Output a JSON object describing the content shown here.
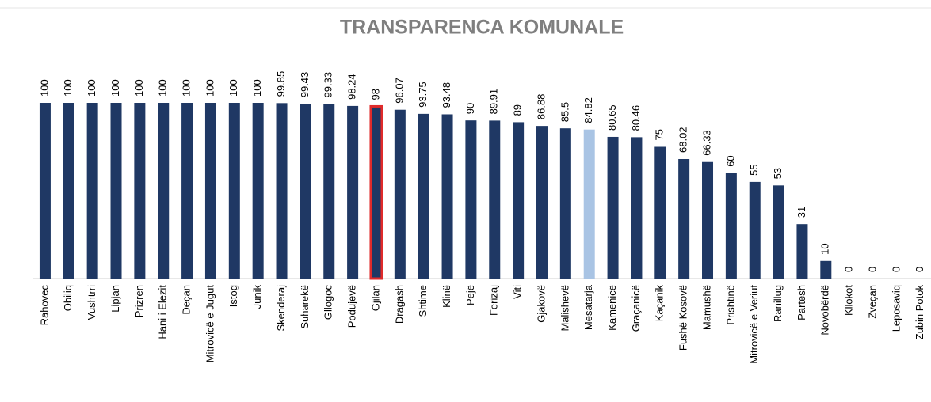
{
  "chart_data": {
    "type": "bar",
    "title": "TRANSPARENCA KOMUNALE",
    "categories": [
      "Rahovec",
      "Obiliq",
      "Vushtrri",
      "Lipjan",
      "Prizren",
      "Hani i Elezit",
      "Deçan",
      "Mitrovicë e Jugut",
      "Istog",
      "Junik",
      "Skenderaj",
      "Suharekë",
      "Gllogoc",
      "Podujevë",
      "Gjilan",
      "Dragash",
      "Shtime",
      "Klinë",
      "Pejë",
      "Ferizaj",
      "Viti",
      "Gjakovë",
      "Malishevë",
      "Mesatarja",
      "Kamenicë",
      "Graçanicë",
      "Kaçanik",
      "Fushë Kosovë",
      "Mamushë",
      "Prishtinë",
      "Mitrovicë e Veriut",
      "Ranillug",
      "Partesh",
      "Novobërdë",
      "Kllokot",
      "Zveçan",
      "Leposaviq",
      "Zubin Potok"
    ],
    "values": [
      100,
      100,
      100,
      100,
      100,
      100,
      100,
      100,
      100,
      100,
      99.85,
      99.43,
      99.33,
      98.24,
      98,
      96.07,
      93.75,
      93.48,
      90,
      89.91,
      89,
      86.88,
      85.5,
      84.82,
      80.65,
      80.46,
      75,
      68.02,
      66.33,
      60,
      55,
      53,
      31,
      10,
      0,
      0,
      0,
      0
    ],
    "colors": [
      "#1f3864",
      "#1f3864",
      "#1f3864",
      "#1f3864",
      "#1f3864",
      "#1f3864",
      "#1f3864",
      "#1f3864",
      "#1f3864",
      "#1f3864",
      "#1f3864",
      "#1f3864",
      "#1f3864",
      "#1f3864",
      "#1f3864",
      "#1f3864",
      "#1f3864",
      "#1f3864",
      "#1f3864",
      "#1f3864",
      "#1f3864",
      "#1f3864",
      "#1f3864",
      "#a9c4e4",
      "#1f3864",
      "#1f3864",
      "#1f3864",
      "#1f3864",
      "#1f3864",
      "#1f3864",
      "#1f3864",
      "#1f3864",
      "#1f3864",
      "#1f3864",
      "#1f3864",
      "#1f3864",
      "#1f3864",
      "#1f3864"
    ],
    "edgecolors": [
      null,
      null,
      null,
      null,
      null,
      null,
      null,
      null,
      null,
      null,
      null,
      null,
      null,
      null,
      "#e02b2b",
      null,
      null,
      null,
      null,
      null,
      null,
      null,
      null,
      null,
      null,
      null,
      null,
      null,
      null,
      null,
      null,
      null,
      null,
      null,
      null,
      null,
      null,
      null
    ],
    "ylim": [
      0,
      100
    ]
  }
}
